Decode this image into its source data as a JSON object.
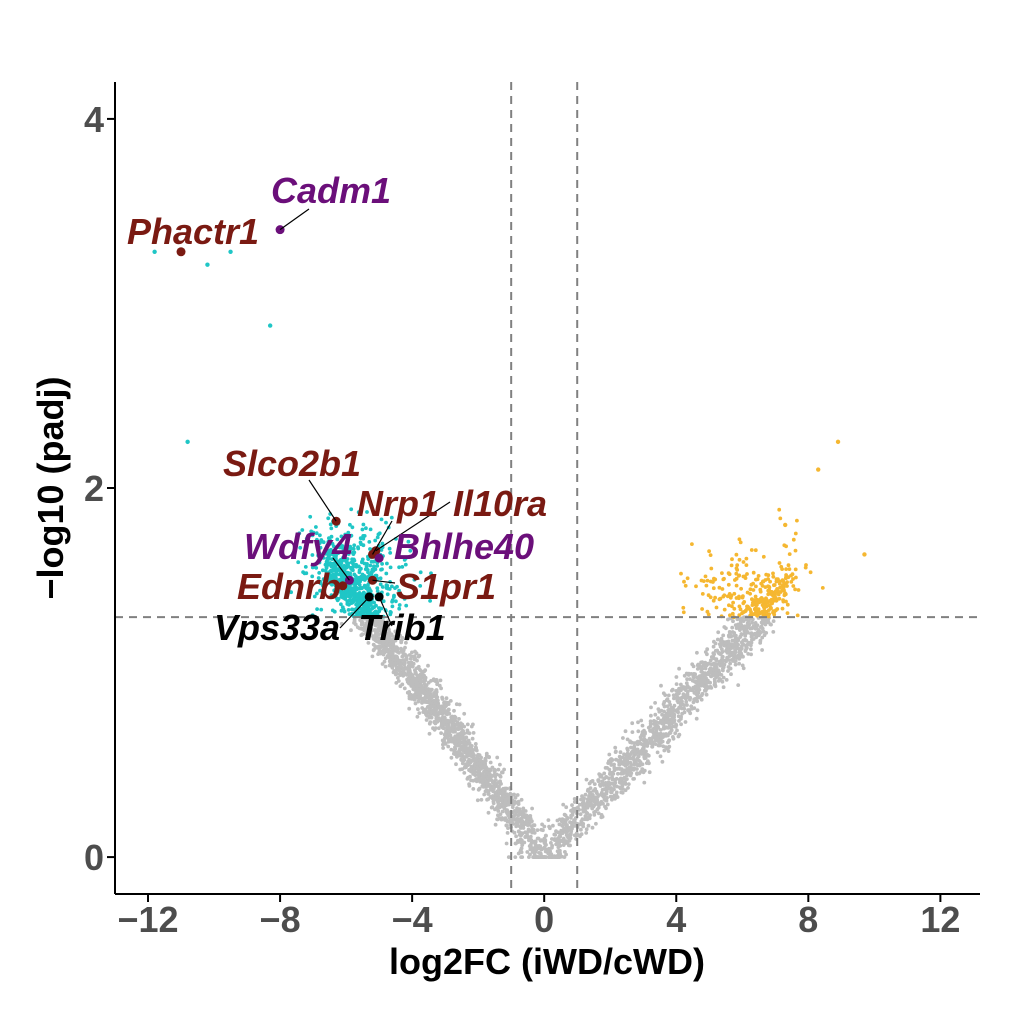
{
  "chart_data": {
    "type": "scatter",
    "title": "",
    "xlabel": "log2FC (iWD/cWD)",
    "ylabel": "−log10 (padj)",
    "xlim": [
      -13,
      13.2
    ],
    "ylim": [
      -0.2,
      4.2
    ],
    "x_ticks": [
      -12,
      -8,
      -4,
      0,
      4,
      8,
      12
    ],
    "x_tick_labels": [
      "−12",
      "−8",
      "−4",
      "0",
      "4",
      "8",
      "12"
    ],
    "y_ticks": [
      0,
      2,
      4
    ],
    "y_tick_labels": [
      "0",
      "2",
      "4"
    ],
    "thresholds": {
      "log2fc": [
        -1,
        1
      ],
      "neg_log10_padj": 1.3
    },
    "grid": false,
    "legend": "none",
    "colors": {
      "not_significant": "#bdbdbd",
      "down": "#1fc6c6",
      "up": "#f5b731",
      "gene_red": "#7a1a12",
      "gene_purple": "#6b0f7a",
      "gene_black": "#000000",
      "threshold_line": "#808080"
    },
    "series": [
      {
        "category": "down",
        "points": [
          {
            "x": -11.8,
            "y": 3.28
          },
          {
            "x": -10.2,
            "y": 3.21
          },
          {
            "x": -9.5,
            "y": 3.28
          },
          {
            "x": -8.3,
            "y": 2.88
          },
          {
            "x": -10.8,
            "y": 2.25
          }
        ]
      },
      {
        "category": "up",
        "points": [
          {
            "x": 8.9,
            "y": 2.25
          },
          {
            "x": 8.3,
            "y": 2.1
          },
          {
            "x": 9.7,
            "y": 1.64
          },
          {
            "x": 7.3,
            "y": 1.8
          }
        ]
      }
    ],
    "highlighted_genes": [
      {
        "name": "Cadm1",
        "x": -8.0,
        "y": 3.4,
        "color": "gene_purple"
      },
      {
        "name": "Phactr1",
        "x": -11.0,
        "y": 3.28,
        "color": "gene_red"
      },
      {
        "name": "Slco2b1",
        "x": -6.3,
        "y": 1.82,
        "color": "gene_red"
      },
      {
        "name": "Nrp1",
        "x": -5.2,
        "y": 1.64,
        "color": "gene_red"
      },
      {
        "name": "Il10ra",
        "x": -5.1,
        "y": 1.66,
        "color": "gene_red"
      },
      {
        "name": "Wdfy4",
        "x": -5.9,
        "y": 1.5,
        "color": "gene_purple"
      },
      {
        "name": "Bhlhe40",
        "x": -5.0,
        "y": 1.62,
        "color": "gene_purple"
      },
      {
        "name": "Ednrb",
        "x": -6.1,
        "y": 1.47,
        "color": "gene_red"
      },
      {
        "name": "S1pr1",
        "x": -5.2,
        "y": 1.5,
        "color": "gene_red"
      },
      {
        "name": "Vps33a",
        "x": -5.3,
        "y": 1.41,
        "color": "gene_black"
      },
      {
        "name": "Trib1",
        "x": -5.0,
        "y": 1.41,
        "color": "gene_black"
      }
    ]
  }
}
